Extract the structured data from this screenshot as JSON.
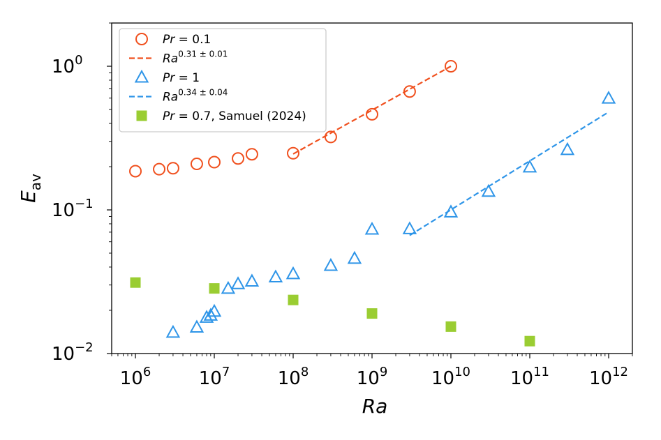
{
  "chart_data": {
    "type": "scatter",
    "xscale": "log",
    "yscale": "log",
    "xlabel": "Ra",
    "ylabel": {
      "base": "E",
      "sub": "av"
    },
    "xlim": [
      500000,
      2000000000000
    ],
    "ylim": [
      0.01,
      2
    ],
    "x_ticks": [
      {
        "value": 1000000,
        "base": "10",
        "exp": "6"
      },
      {
        "value": 10000000,
        "base": "10",
        "exp": "7"
      },
      {
        "value": 100000000,
        "base": "10",
        "exp": "8"
      },
      {
        "value": 1000000000,
        "base": "10",
        "exp": "9"
      },
      {
        "value": 10000000000,
        "base": "10",
        "exp": "10"
      },
      {
        "value": 100000000000,
        "base": "10",
        "exp": "11"
      },
      {
        "value": 1000000000000,
        "base": "10",
        "exp": "12"
      }
    ],
    "y_ticks": [
      {
        "value": 0.01,
        "base": "10",
        "exp": "−2"
      },
      {
        "value": 0.1,
        "base": "10",
        "exp": "−1"
      },
      {
        "value": 1,
        "base": "10",
        "exp": "0"
      }
    ],
    "series": [
      {
        "name": "Pr = 0.1",
        "marker": "circle-open",
        "color": "#f0501e",
        "points": [
          [
            1000000,
            0.186
          ],
          [
            2000000,
            0.192
          ],
          [
            3000000,
            0.195
          ],
          [
            6000000,
            0.209
          ],
          [
            10000000,
            0.215
          ],
          [
            20000000,
            0.228
          ],
          [
            30000000,
            0.244
          ],
          [
            100000000,
            0.248
          ],
          [
            300000000,
            0.322
          ],
          [
            1000000000,
            0.463
          ],
          [
            3000000000,
            0.667
          ],
          [
            10000000000,
            1.0
          ]
        ]
      },
      {
        "name": "Pr = 1",
        "marker": "triangle-open",
        "color": "#2e95e8",
        "points": [
          [
            3000000,
            0.014
          ],
          [
            6000000,
            0.0152
          ],
          [
            8000000,
            0.0178
          ],
          [
            9000000,
            0.0184
          ],
          [
            10000000,
            0.0196
          ],
          [
            15000000,
            0.0283
          ],
          [
            20000000,
            0.0305
          ],
          [
            30000000,
            0.0318
          ],
          [
            60000000,
            0.034
          ],
          [
            100000000,
            0.0358
          ],
          [
            300000000,
            0.0409
          ],
          [
            600000000,
            0.0458
          ],
          [
            1000000000,
            0.0731
          ],
          [
            3000000000,
            0.0736
          ],
          [
            10000000000,
            0.0963
          ],
          [
            30000000000,
            0.134
          ],
          [
            100000000000,
            0.198
          ],
          [
            300000000000,
            0.262
          ],
          [
            1000000000000,
            0.597
          ]
        ]
      },
      {
        "name": "Pr = 0.7, Samuel (2024)",
        "marker": "square-filled",
        "color": "#9acd32",
        "points": [
          [
            1000000,
            0.0312
          ],
          [
            10000000,
            0.0284
          ],
          [
            100000000,
            0.0236
          ],
          [
            1000000000,
            0.019
          ],
          [
            10000000000,
            0.0154
          ],
          [
            100000000000,
            0.0122
          ]
        ]
      }
    ],
    "fits": [
      {
        "name": "Ra^{0.31 ± 0.01}",
        "color": "#f0501e",
        "dash": "dashed",
        "from": [
          100000000,
          0.245
        ],
        "to": [
          10000000000,
          1.0
        ]
      },
      {
        "name": "Ra^{0.34 ± 0.04}",
        "color": "#2e95e8",
        "dash": "dashed",
        "from": [
          3000000000,
          0.0665
        ],
        "to": [
          1000000000000,
          0.48
        ]
      }
    ],
    "legend": {
      "placement": "top-left",
      "entries": [
        {
          "kind": "circle-open",
          "color": "#f0501e",
          "math": "Pr",
          "rest": " = 0.1"
        },
        {
          "kind": "dash",
          "color": "#f0501e",
          "math": "Ra",
          "sup": "0.31 ± 0.01"
        },
        {
          "kind": "triangle-open",
          "color": "#2e95e8",
          "math": "Pr",
          "rest": " = 1"
        },
        {
          "kind": "dash",
          "color": "#2e95e8",
          "math": "Ra",
          "sup": "0.34 ± 0.04"
        },
        {
          "kind": "square-filled",
          "color": "#9acd32",
          "math": "Pr",
          "rest": " = 0.7, Samuel (2024)"
        }
      ]
    },
    "grid": false
  }
}
